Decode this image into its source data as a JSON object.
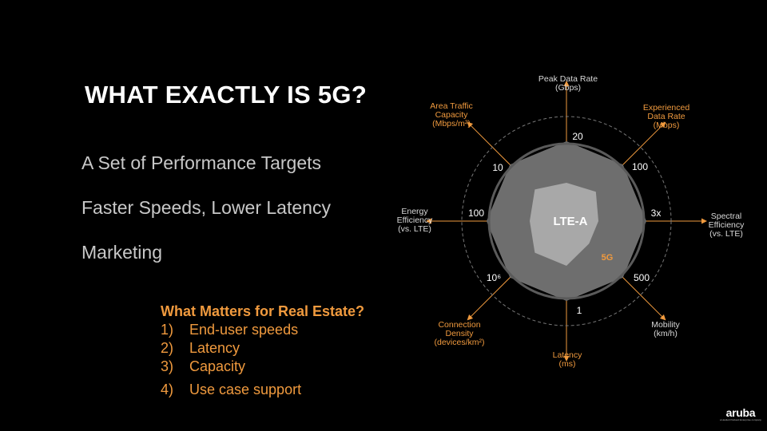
{
  "slide": {
    "title": "WHAT EXACTLY IS 5G?",
    "bullets": [
      "A Set of Performance Targets",
      "Faster Speeds, Lower Latency",
      "Marketing"
    ],
    "matters": {
      "heading": "What Matters for Real Estate?",
      "items": [
        {
          "num": "1)",
          "text": "End-user speeds"
        },
        {
          "num": "2)",
          "text": "Latency"
        },
        {
          "num": "3)",
          "text": "Capacity"
        },
        {
          "num": "4)",
          "text": "Use case support"
        }
      ]
    },
    "logo": {
      "word": "aruba",
      "sub": "a Hewlett Packard Enterprise company"
    }
  },
  "diagram": {
    "center_label": "LTE-A",
    "outer_label": "5G",
    "colors": {
      "axis_orange": "#f09a3e",
      "label_gray": "#d8d8d8",
      "outer_fill": "#6e6e6e",
      "inner_fill": "#a8a8a8",
      "ring_gray": "#5a5a5a",
      "dashed_ring": "#777777",
      "center_text": "#ffffff",
      "fiveg_label": "#f09a3e"
    },
    "axes": [
      {
        "name": "Peak Data Rate",
        "unit": "(Gbps)",
        "value": "20",
        "label_color": "white"
      },
      {
        "name": "Experienced Data Rate",
        "unit": "(Mbps)",
        "value": "100",
        "label_color": "orange"
      },
      {
        "name": "Spectral Efficiency",
        "unit": "(vs. LTE)",
        "value": "3x",
        "label_color": "white"
      },
      {
        "name": "Mobility",
        "unit": "(km/h)",
        "value": "500",
        "label_color": "white"
      },
      {
        "name": "Latency",
        "unit": "(ms)",
        "value": "1",
        "label_color": "orange"
      },
      {
        "name": "Connection Density",
        "unit": "(devices/km²)",
        "value": "10⁶",
        "label_color": "orange"
      },
      {
        "name": "Energy Efficiency",
        "unit": "(vs. LTE)",
        "value": "100",
        "label_color": "white"
      },
      {
        "name": "Area Traffic Capacity",
        "unit": "(Mbps/m²)",
        "value": "10",
        "label_color": "orange"
      }
    ]
  }
}
